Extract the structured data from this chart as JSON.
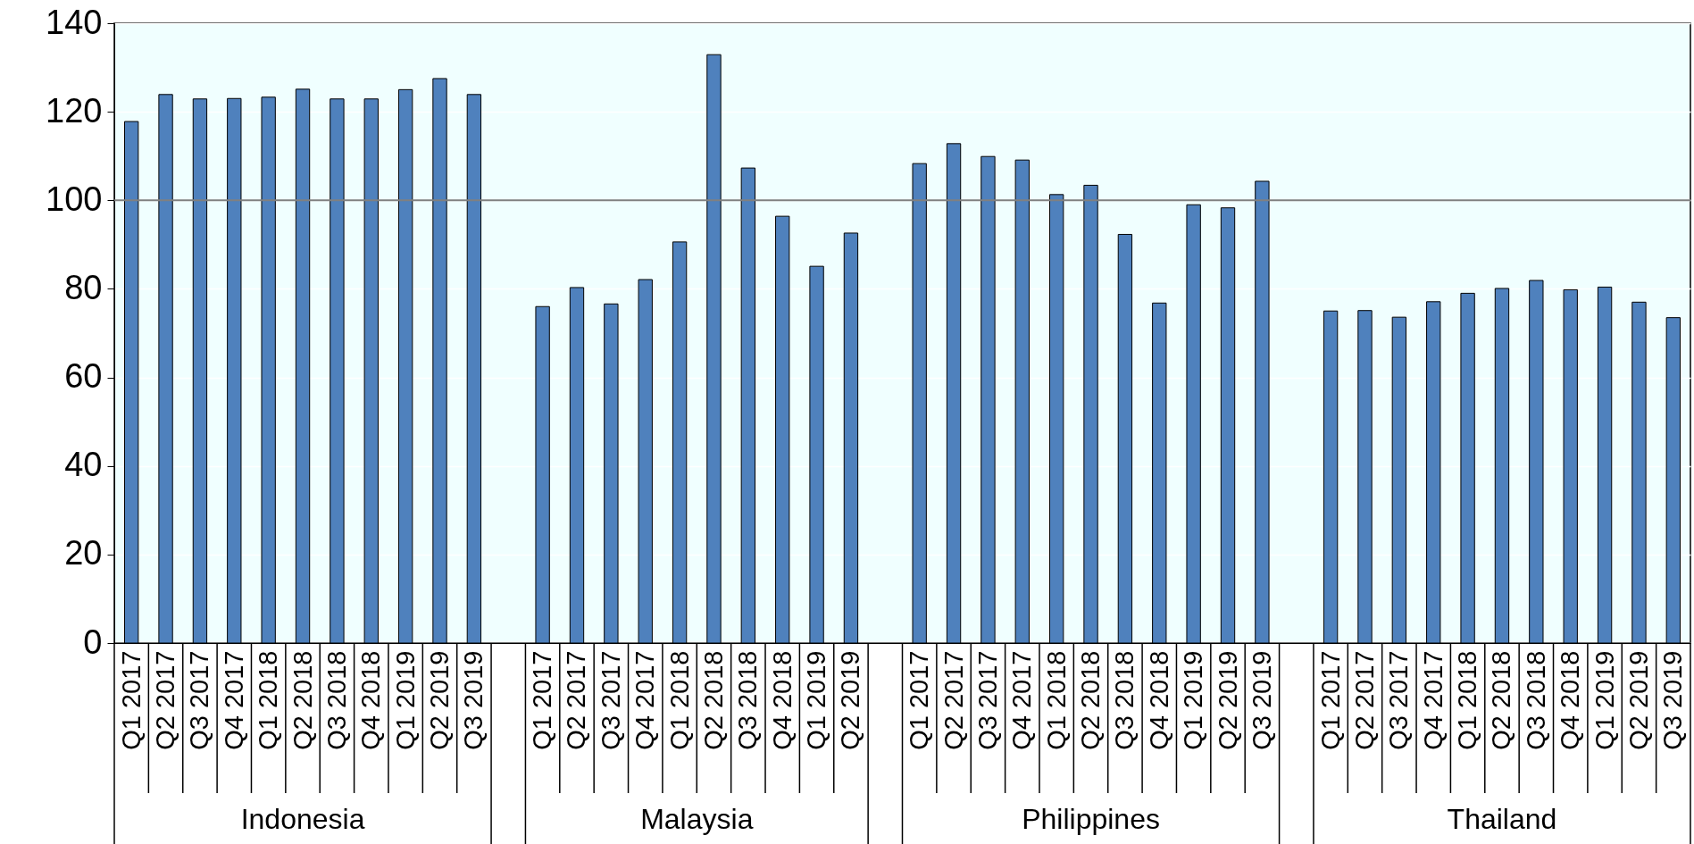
{
  "chart_data": {
    "type": "bar",
    "categories": [
      "Q1 2017",
      "Q2 2017",
      "Q3 2017",
      "Q4 2017",
      "Q1 2018",
      "Q2 2018",
      "Q3 2018",
      "Q4 2018",
      "Q1 2019",
      "Q2 2019",
      "Q3 2019",
      null,
      "Q1 2017",
      "Q2 2017",
      "Q3 2017",
      "Q4 2017",
      "Q1 2018",
      "Q2 2018",
      "Q3 2018",
      "Q4 2018",
      "Q1 2019",
      "Q2 2019",
      null,
      "Q1 2017",
      "Q2 2017",
      "Q3 2017",
      "Q4 2017",
      "Q1 2018",
      "Q2 2018",
      "Q3 2018",
      "Q4 2018",
      "Q1 2019",
      "Q2 2019",
      "Q3 2019",
      null,
      "Q1 2017",
      "Q2 2017",
      "Q3 2017",
      "Q4 2017",
      "Q1 2018",
      "Q2 2018",
      "Q3 2018",
      "Q4 2018",
      "Q1 2019",
      "Q2 2019",
      "Q3 2019"
    ],
    "values": [
      117.8,
      123.9,
      122.9,
      123.0,
      123.3,
      125.1,
      122.9,
      122.9,
      125.0,
      127.5,
      123.9,
      null,
      76.0,
      80.3,
      76.6,
      82.1,
      90.6,
      132.9,
      107.3,
      96.4,
      85.1,
      92.6,
      null,
      108.3,
      112.8,
      109.9,
      109.1,
      101.3,
      103.4,
      92.3,
      76.8,
      99.0,
      98.3,
      104.3,
      null,
      75.0,
      75.1,
      73.6,
      77.1,
      79.0,
      80.1,
      81.9,
      79.8,
      80.4,
      77.0,
      73.5
    ],
    "color": "#4f81bd",
    "annotations": [
      "Indonesia",
      "Malaysia",
      "Philippines",
      "Thailand"
    ],
    "ylim": [
      0,
      140
    ],
    "yticks": [
      0,
      20,
      40,
      60,
      80,
      100,
      120,
      140
    ],
    "grid": "y",
    "legend": false,
    "ref_lines": [
      {
        "axis": "y",
        "value": 100,
        "color": "#808080"
      }
    ]
  }
}
